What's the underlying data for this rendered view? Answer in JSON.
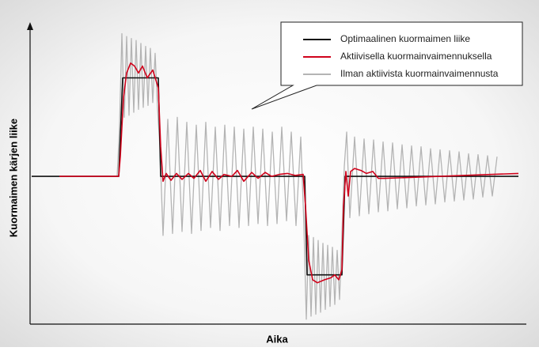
{
  "chart_data": {
    "type": "line",
    "x_label": "Aika",
    "y_label": "Kuormaimen kärjen liike",
    "xlim": [
      0,
      627
    ],
    "ylim": [
      -1.5,
      1.55
    ],
    "legend": "top-right",
    "series": [
      {
        "name": "Optimaalinen kuormaimen liike",
        "color": "#111111",
        "x": [
          2,
          112,
          117,
          162,
          165,
          347,
          350,
          394,
          398,
          617
        ],
        "values": [
          0,
          0,
          1,
          1,
          0,
          0,
          -1,
          -1,
          0,
          0
        ]
      },
      {
        "name": "Aktiivisella kuormainvaimennuksella",
        "color": "#d0021b",
        "x": [
          37,
          112,
          114,
          118,
          122,
          127,
          132,
          137,
          142,
          148,
          155,
          162,
          165,
          168,
          172,
          178,
          185,
          192,
          200,
          207,
          215,
          222,
          230,
          238,
          245,
          255,
          262,
          270,
          280,
          288,
          297,
          305,
          315,
          325,
          335,
          345,
          348,
          352,
          357,
          363,
          372,
          380,
          385,
          390,
          394,
          396,
          399,
          402,
          405,
          410,
          418,
          425,
          433,
          440,
          448,
          617
        ],
        "values": [
          0,
          0,
          0.2,
          0.8,
          1.05,
          1.15,
          1.12,
          1.05,
          1.12,
          1.0,
          1.08,
          0.9,
          0.3,
          -0.05,
          0.03,
          -0.04,
          0.03,
          -0.03,
          0.03,
          -0.02,
          0.06,
          -0.05,
          0.05,
          -0.03,
          0.02,
          0,
          0.06,
          -0.05,
          0.04,
          -0.02,
          0.04,
          0,
          0.02,
          0.03,
          0.01,
          0.02,
          -0.3,
          -0.85,
          -1.05,
          -1.08,
          -1.05,
          -1.03,
          -1.0,
          -1.05,
          -0.95,
          -0.3,
          0.05,
          -0.2,
          0.05,
          0.08,
          0.06,
          0.03,
          0.05,
          -0.02,
          -0.02,
          0.03
        ]
      },
      {
        "name": "Ilman aktiivista kuormainvaimennusta",
        "color": "#b4b4b4",
        "x": [
          22,
          110,
          113,
          116,
          119,
          122,
          125,
          128,
          131,
          134,
          137,
          140,
          143,
          146,
          149,
          152,
          155,
          158,
          161,
          164,
          168,
          174,
          180,
          186,
          192,
          198,
          204,
          210,
          216,
          222,
          228,
          234,
          240,
          246,
          252,
          258,
          264,
          270,
          276,
          282,
          288,
          294,
          300,
          306,
          312,
          318,
          324,
          330,
          336,
          342,
          346,
          349,
          352,
          355,
          358,
          361,
          364,
          367,
          370,
          373,
          376,
          379,
          382,
          385,
          388,
          391,
          394,
          397,
          400,
          404,
          410,
          416,
          422,
          428,
          434,
          440,
          446,
          452,
          458,
          464,
          470,
          476,
          482,
          488,
          494,
          500,
          506,
          512,
          518,
          524,
          530,
          536,
          542,
          548,
          554,
          560,
          566,
          572,
          578,
          584,
          590
        ],
        "values": [
          0,
          0,
          0.5,
          1.45,
          0.6,
          1.42,
          0.62,
          1.4,
          0.65,
          1.38,
          0.68,
          1.35,
          0.7,
          1.32,
          0.72,
          1.3,
          0.75,
          1.25,
          0.7,
          0.3,
          -0.6,
          0.58,
          -0.58,
          0.6,
          -0.56,
          0.55,
          -0.58,
          0.52,
          -0.55,
          0.55,
          -0.52,
          0.5,
          -0.55,
          0.52,
          -0.5,
          0.5,
          -0.52,
          0.48,
          -0.5,
          0.5,
          -0.48,
          0.48,
          -0.5,
          0.45,
          -0.48,
          0.5,
          -0.45,
          0.45,
          -0.5,
          0.4,
          -0.5,
          -1.45,
          -0.6,
          -1.42,
          -0.62,
          -1.4,
          -0.65,
          -1.38,
          -0.68,
          -1.35,
          -0.7,
          -1.32,
          -0.72,
          -1.3,
          -0.75,
          -1.25,
          -0.6,
          0.1,
          0.45,
          -0.42,
          0.4,
          -0.4,
          0.38,
          -0.38,
          0.37,
          -0.36,
          0.35,
          -0.35,
          0.34,
          -0.33,
          0.32,
          -0.32,
          0.31,
          -0.3,
          0.3,
          -0.29,
          0.28,
          -0.28,
          0.27,
          -0.26,
          0.26,
          -0.25,
          0.25,
          -0.24,
          0.23,
          -0.23,
          0.22,
          -0.21,
          0.21,
          -0.2,
          0.2
        ]
      }
    ]
  }
}
